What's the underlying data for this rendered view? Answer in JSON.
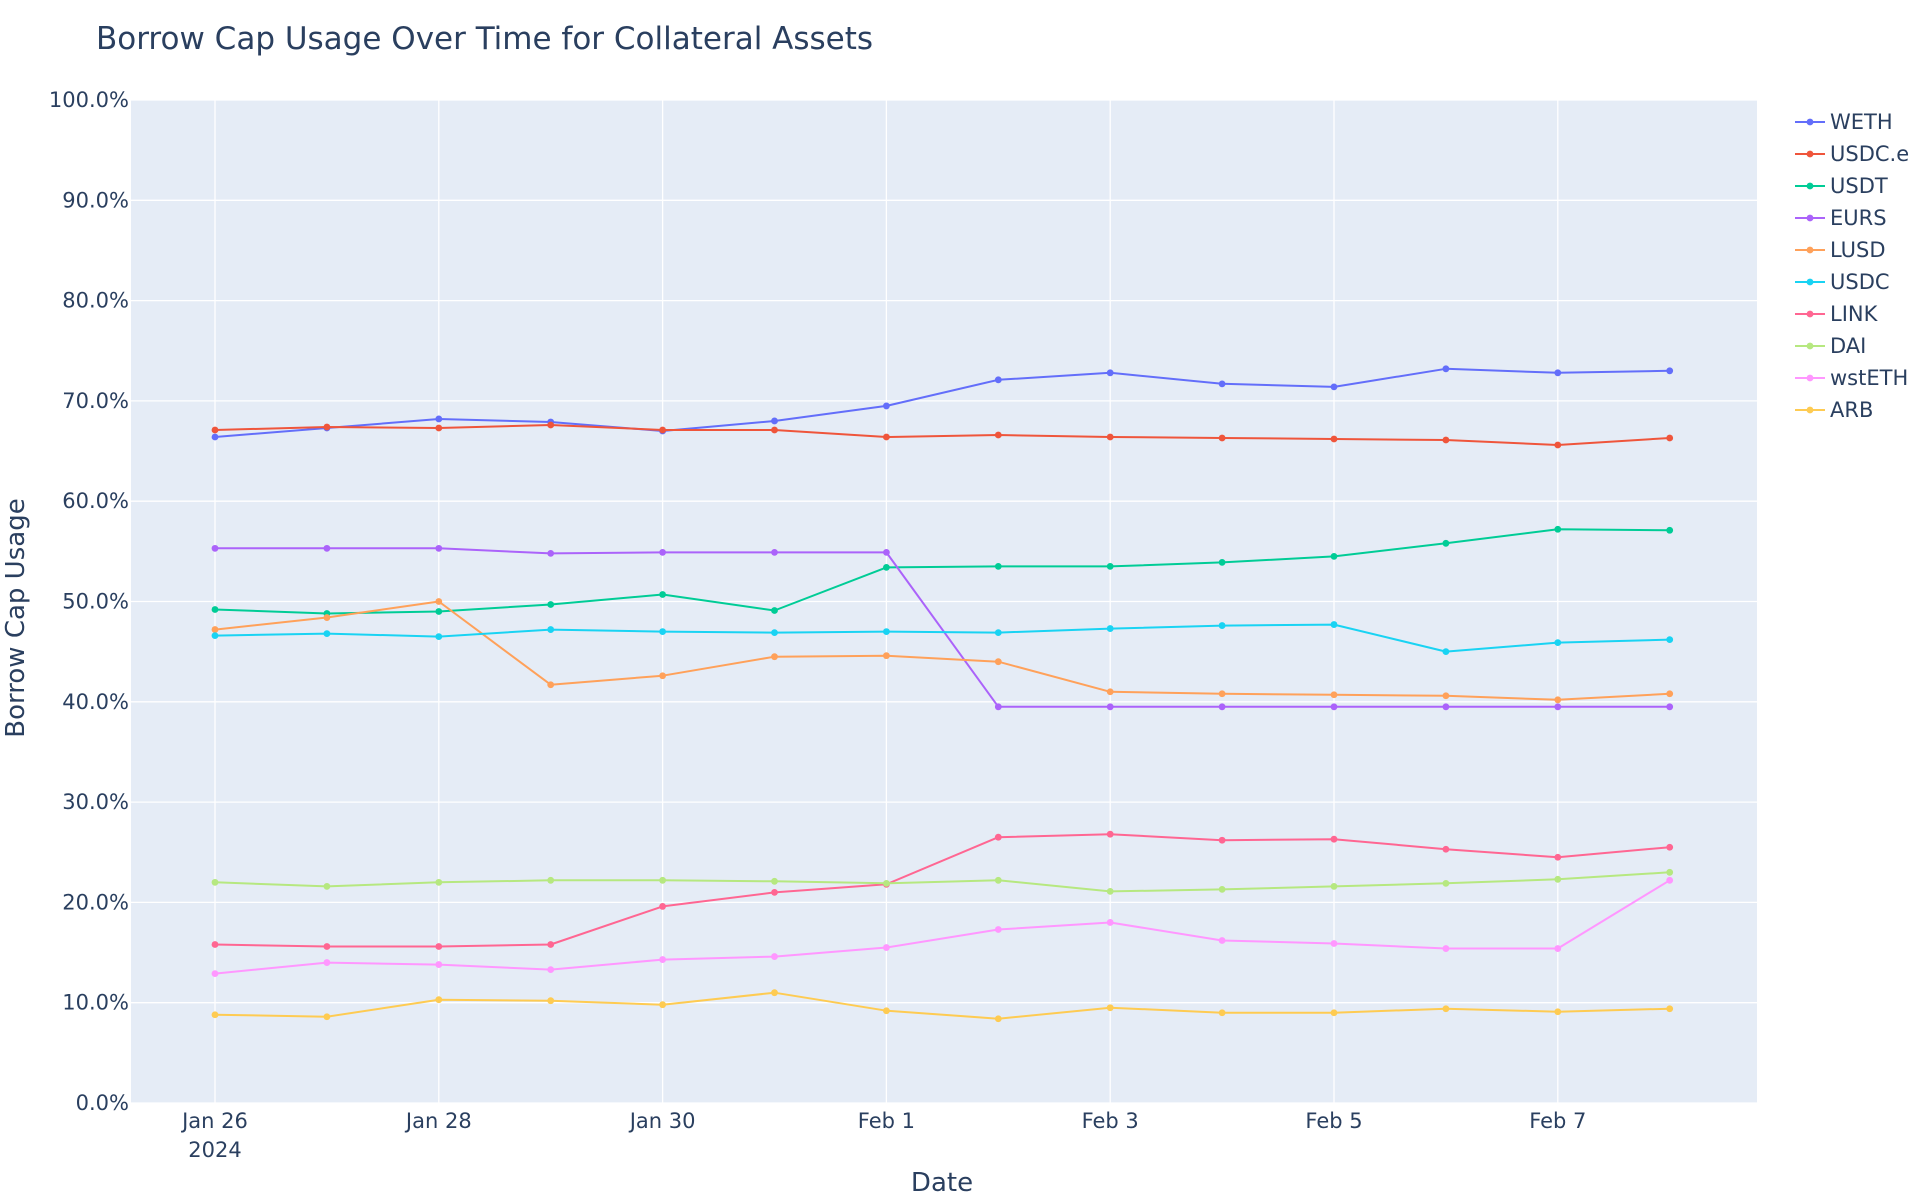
{
  "chart_data": {
    "type": "line",
    "title": "Borrow Cap Usage Over Time for Collateral Assets",
    "xlabel": "Date",
    "ylabel": "Borrow Cap Usage",
    "ylim": [
      0,
      100
    ],
    "yticks": [
      "0.0%",
      "10.0%",
      "20.0%",
      "30.0%",
      "40.0%",
      "50.0%",
      "60.0%",
      "70.0%",
      "80.0%",
      "90.0%",
      "100.0%"
    ],
    "x": [
      "2024-01-26",
      "2024-01-27",
      "2024-01-28",
      "2024-01-29",
      "2024-01-30",
      "2024-01-31",
      "2024-02-01",
      "2024-02-02",
      "2024-02-03",
      "2024-02-04",
      "2024-02-05",
      "2024-02-06",
      "2024-02-07",
      "2024-02-08"
    ],
    "xticks": [
      {
        "index": 0,
        "label": "Jan 26",
        "sublabel": "2024"
      },
      {
        "index": 2,
        "label": "Jan 28"
      },
      {
        "index": 4,
        "label": "Jan 30"
      },
      {
        "index": 6,
        "label": "Feb 1"
      },
      {
        "index": 8,
        "label": "Feb 3"
      },
      {
        "index": 10,
        "label": "Feb 5"
      },
      {
        "index": 12,
        "label": "Feb 7"
      }
    ],
    "grid": true,
    "legend_position": "right",
    "series": [
      {
        "name": "WETH",
        "color": "#636efa",
        "values": [
          66.4,
          67.3,
          68.2,
          67.9,
          67.0,
          68.0,
          69.5,
          72.1,
          72.8,
          71.7,
          71.4,
          73.2,
          72.8,
          73.0
        ]
      },
      {
        "name": "USDC.e",
        "color": "#ef553b",
        "values": [
          67.1,
          67.4,
          67.3,
          67.6,
          67.1,
          67.1,
          66.4,
          66.6,
          66.4,
          66.3,
          66.2,
          66.1,
          65.6,
          66.3
        ]
      },
      {
        "name": "USDT",
        "color": "#00cc96",
        "values": [
          49.2,
          48.8,
          49.0,
          49.7,
          50.7,
          49.1,
          53.4,
          53.5,
          53.5,
          53.9,
          54.5,
          55.8,
          57.2,
          57.1
        ]
      },
      {
        "name": "EURS",
        "color": "#ab63fa",
        "values": [
          55.3,
          55.3,
          55.3,
          54.8,
          54.9,
          54.9,
          54.9,
          39.5,
          39.5,
          39.5,
          39.5,
          39.5,
          39.5,
          39.5
        ]
      },
      {
        "name": "LUSD",
        "color": "#ffa15a",
        "values": [
          47.2,
          48.4,
          50.0,
          41.7,
          42.6,
          44.5,
          44.6,
          44.0,
          41.0,
          40.8,
          40.7,
          40.6,
          40.2,
          40.8
        ]
      },
      {
        "name": "USDC",
        "color": "#19d3f3",
        "values": [
          46.6,
          46.8,
          46.5,
          47.2,
          47.0,
          46.9,
          47.0,
          46.9,
          47.3,
          47.6,
          47.7,
          45.0,
          45.9,
          46.2
        ]
      },
      {
        "name": "LINK",
        "color": "#ff6692",
        "values": [
          15.8,
          15.6,
          15.6,
          15.8,
          19.6,
          21.0,
          21.8,
          26.5,
          26.8,
          26.2,
          26.3,
          25.3,
          24.5,
          25.5
        ]
      },
      {
        "name": "DAI",
        "color": "#b6e880",
        "values": [
          22.0,
          21.6,
          22.0,
          22.2,
          22.2,
          22.1,
          21.9,
          22.2,
          21.1,
          21.3,
          21.6,
          21.9,
          22.3,
          23.0
        ]
      },
      {
        "name": "wstETH",
        "color": "#ff97ff",
        "values": [
          12.9,
          14.0,
          13.8,
          13.3,
          14.3,
          14.6,
          15.5,
          17.3,
          18.0,
          16.2,
          15.9,
          15.4,
          15.4,
          22.2
        ]
      },
      {
        "name": "ARB",
        "color": "#fecb52",
        "values": [
          8.8,
          8.6,
          10.3,
          10.2,
          9.8,
          11.0,
          9.2,
          8.4,
          9.5,
          9.0,
          9.0,
          9.4,
          9.1,
          9.4
        ]
      }
    ]
  }
}
